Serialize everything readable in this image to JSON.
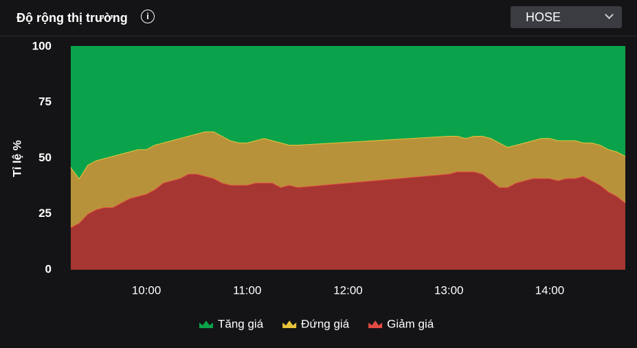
{
  "header": {
    "title": "Độ rộng thị trường",
    "exchange": "HOSE"
  },
  "chart_data": {
    "type": "stacked-area",
    "y_label": "Tỉ lệ %",
    "x": [
      "09:15",
      "09:20",
      "09:25",
      "09:30",
      "09:35",
      "09:40",
      "09:45",
      "09:50",
      "09:55",
      "10:00",
      "10:05",
      "10:10",
      "10:15",
      "10:20",
      "10:25",
      "10:30",
      "10:35",
      "10:40",
      "10:45",
      "10:50",
      "10:55",
      "11:00",
      "11:05",
      "11:10",
      "11:15",
      "11:20",
      "11:25",
      "11:30",
      "13:00",
      "13:05",
      "13:10",
      "13:15",
      "13:20",
      "13:25",
      "13:30",
      "13:35",
      "13:40",
      "13:45",
      "13:50",
      "13:55",
      "14:00",
      "14:05",
      "14:10",
      "14:15",
      "14:20",
      "14:25",
      "14:30",
      "14:35",
      "14:40",
      "14:45"
    ],
    "xlim": [
      "09:15",
      "14:45"
    ],
    "xticks": [
      "10:00",
      "11:00",
      "12:00",
      "13:00",
      "14:00"
    ],
    "ylim": [
      0,
      100
    ],
    "yticks": [
      0,
      25,
      50,
      75,
      100
    ],
    "series": [
      {
        "name": "Tăng giá",
        "color": "#0aa34b",
        "line": "#0aa34b",
        "values": [
          54,
          59,
          53,
          51,
          50,
          49,
          48,
          47,
          46,
          46,
          44,
          43,
          42,
          41,
          40,
          39,
          38,
          38,
          40,
          42,
          43,
          43,
          42,
          41,
          42,
          43,
          44,
          44,
          40,
          40,
          41,
          40,
          40,
          41,
          43,
          45,
          44,
          43,
          42,
          41,
          41,
          42,
          42,
          42,
          43,
          43,
          44,
          46,
          47,
          49
        ]
      },
      {
        "name": "Đứng giá",
        "color": "#b8923a",
        "line": "#e8c43c",
        "values": [
          27,
          20,
          22,
          22,
          22,
          23,
          22,
          21,
          21,
          20,
          20,
          18,
          18,
          18,
          17,
          18,
          20,
          21,
          21,
          20,
          19,
          19,
          19,
          20,
          19,
          20,
          18,
          19,
          17,
          16,
          15,
          16,
          17,
          19,
          20,
          18,
          17,
          17,
          17,
          18,
          18,
          18,
          17,
          17,
          15,
          17,
          18,
          19,
          20,
          21
        ]
      },
      {
        "name": "Giảm giá",
        "color": "#a63631",
        "line": "#e34a42",
        "values": [
          19,
          21,
          25,
          27,
          28,
          28,
          30,
          32,
          33,
          34,
          36,
          39,
          40,
          41,
          43,
          43,
          42,
          41,
          39,
          38,
          38,
          38,
          39,
          39,
          39,
          37,
          38,
          37,
          43,
          44,
          44,
          44,
          43,
          40,
          37,
          37,
          39,
          40,
          41,
          41,
          41,
          40,
          41,
          41,
          42,
          40,
          38,
          35,
          33,
          30
        ]
      }
    ]
  }
}
